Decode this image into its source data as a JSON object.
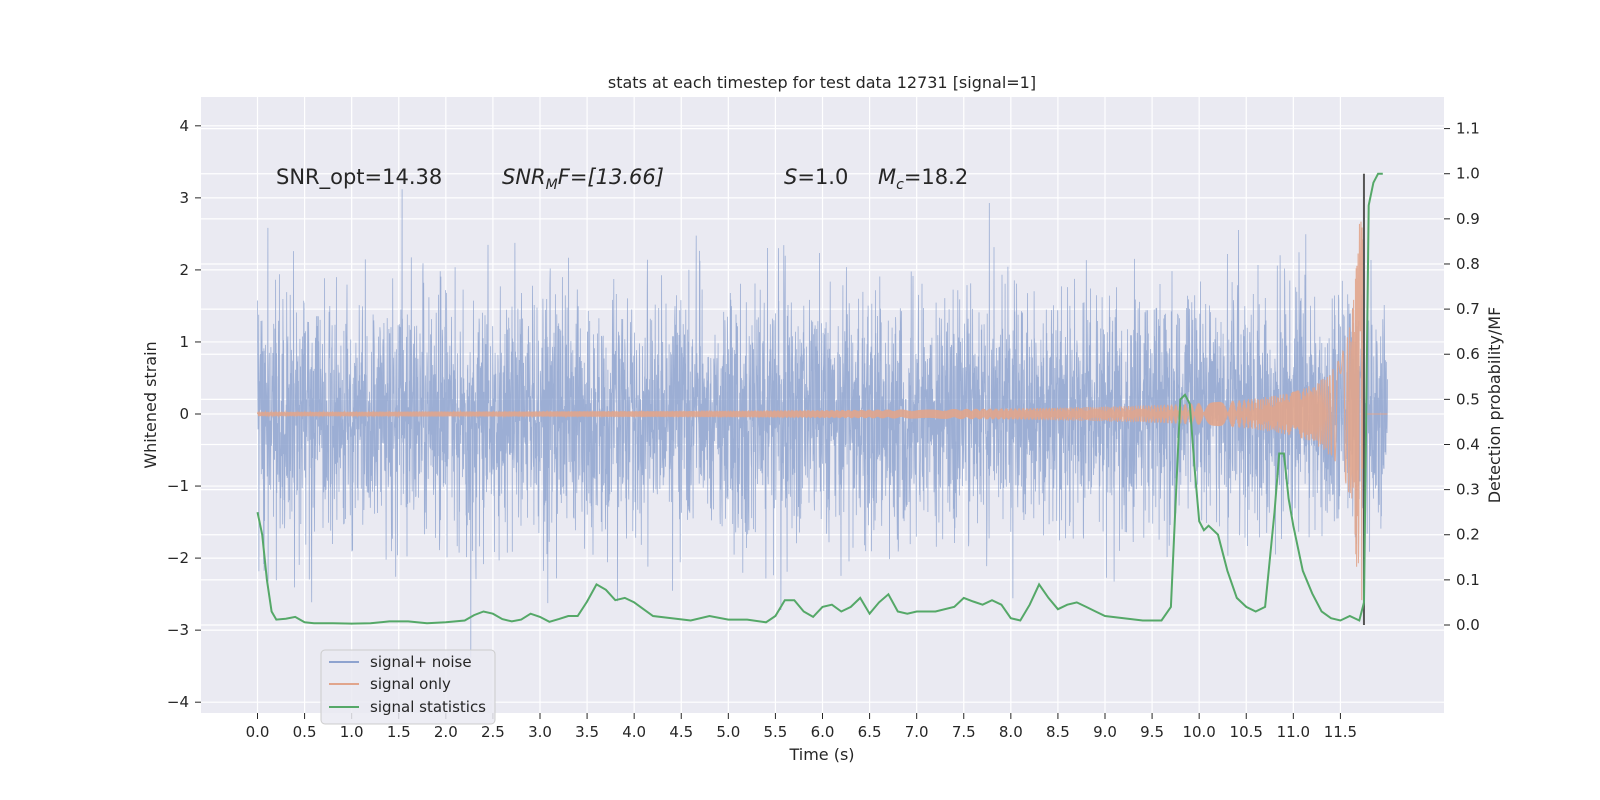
{
  "chart_data": {
    "type": "line",
    "title": "stats at each timestep for test data 12731 [signal=1]",
    "xlabel": "Time (s)",
    "ylabel": "Whitened strain",
    "y2label": "Detection probability/MF",
    "xlim": [
      -0.6,
      12.6
    ],
    "ylim": [
      -4.15,
      4.4
    ],
    "y2lim": [
      -0.195,
      1.17
    ],
    "x_ticks": [
      "0.0",
      "0.5",
      "1.0",
      "1.5",
      "2.0",
      "2.5",
      "3.0",
      "3.5",
      "4.0",
      "4.5",
      "5.0",
      "5.5",
      "6.0",
      "6.5",
      "7.0",
      "7.5",
      "8.0",
      "8.5",
      "9.0",
      "9.5",
      "10.0",
      "10.5",
      "11.0",
      "11.5"
    ],
    "y_ticks": [
      "4",
      "3",
      "2",
      "1",
      "0",
      "−1",
      "−2",
      "−3",
      "−4"
    ],
    "y2_ticks": [
      "1.1",
      "1.0",
      "0.9",
      "0.8",
      "0.7",
      "0.6",
      "0.5",
      "0.4",
      "0.3",
      "0.2",
      "0.1",
      "0.0"
    ],
    "annotations": {
      "snr_opt": "SNR_opt=14.38",
      "snr_mf_base": "SNR",
      "snr_mf_sub": "M",
      "snr_mf_rest": "F=[13.66]",
      "s_sym": "S",
      "s_val": "=1.0",
      "mc_sym": "M",
      "mc_sub": "c",
      "mc_val": "=18.2"
    },
    "series": [
      {
        "name": "signal+ noise",
        "color": "#8ea3cf",
        "axis": "left",
        "noise_std": 1.0,
        "x_range": [
          0.0,
          12.0
        ]
      },
      {
        "name": "signal only",
        "color": "#e1a58c",
        "axis": "left",
        "chirp_merger_time": 11.75,
        "peak_amplitude": 2.7
      },
      {
        "name": "signal statistics",
        "color": "#55a868",
        "axis": "right",
        "x": [
          0.0,
          0.05,
          0.1,
          0.15,
          0.2,
          0.3,
          0.4,
          0.5,
          0.6,
          0.8,
          1.0,
          1.2,
          1.4,
          1.6,
          1.8,
          2.0,
          2.2,
          2.3,
          2.4,
          2.5,
          2.6,
          2.7,
          2.8,
          2.9,
          3.0,
          3.1,
          3.2,
          3.3,
          3.4,
          3.5,
          3.6,
          3.7,
          3.8,
          3.9,
          4.0,
          4.2,
          4.4,
          4.6,
          4.8,
          5.0,
          5.2,
          5.4,
          5.5,
          5.6,
          5.7,
          5.8,
          5.9,
          6.0,
          6.1,
          6.2,
          6.3,
          6.4,
          6.5,
          6.6,
          6.7,
          6.8,
          6.9,
          7.0,
          7.2,
          7.4,
          7.5,
          7.6,
          7.7,
          7.8,
          7.9,
          8.0,
          8.1,
          8.2,
          8.3,
          8.4,
          8.5,
          8.6,
          8.7,
          8.8,
          8.9,
          9.0,
          9.2,
          9.4,
          9.6,
          9.7,
          9.8,
          9.85,
          9.9,
          9.95,
          10.0,
          10.05,
          10.1,
          10.2,
          10.3,
          10.4,
          10.5,
          10.6,
          10.7,
          10.8,
          10.85,
          10.9,
          10.95,
          11.0,
          11.1,
          11.2,
          11.3,
          11.4,
          11.5,
          11.6,
          11.7,
          11.75,
          11.8,
          11.85,
          11.9,
          11.95
        ],
        "values": [
          0.25,
          0.2,
          0.1,
          0.03,
          0.012,
          0.014,
          0.018,
          0.006,
          0.004,
          0.004,
          0.003,
          0.004,
          0.008,
          0.008,
          0.004,
          0.006,
          0.01,
          0.022,
          0.03,
          0.025,
          0.013,
          0.008,
          0.012,
          0.025,
          0.018,
          0.007,
          0.013,
          0.02,
          0.02,
          0.052,
          0.09,
          0.078,
          0.055,
          0.06,
          0.05,
          0.02,
          0.015,
          0.01,
          0.02,
          0.012,
          0.012,
          0.006,
          0.02,
          0.055,
          0.055,
          0.03,
          0.018,
          0.04,
          0.045,
          0.03,
          0.04,
          0.06,
          0.025,
          0.05,
          0.068,
          0.03,
          0.025,
          0.03,
          0.03,
          0.04,
          0.06,
          0.052,
          0.045,
          0.055,
          0.045,
          0.015,
          0.01,
          0.045,
          0.09,
          0.06,
          0.035,
          0.045,
          0.05,
          0.04,
          0.03,
          0.02,
          0.015,
          0.01,
          0.01,
          0.04,
          0.5,
          0.51,
          0.49,
          0.35,
          0.23,
          0.21,
          0.22,
          0.2,
          0.12,
          0.06,
          0.04,
          0.03,
          0.04,
          0.25,
          0.38,
          0.38,
          0.28,
          0.22,
          0.12,
          0.07,
          0.03,
          0.015,
          0.01,
          0.02,
          0.01,
          0.05,
          0.93,
          0.98,
          1.0,
          1.0
        ]
      }
    ],
    "merger_line_x": 11.75,
    "legend_position": "lower-left",
    "grid": true
  }
}
